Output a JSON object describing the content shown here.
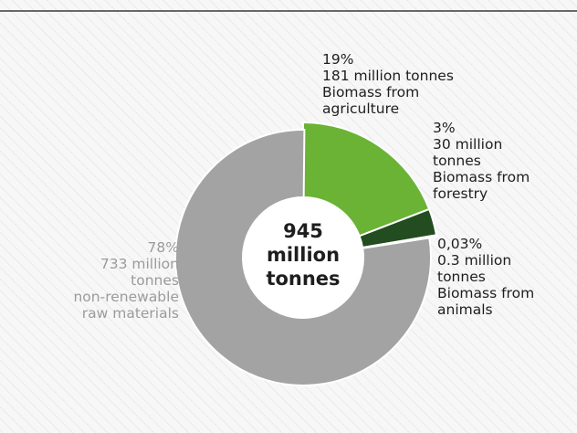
{
  "chart_data": {
    "type": "pie",
    "donut": true,
    "center_label": [
      "945",
      "million",
      "tonnes"
    ],
    "slices": [
      {
        "percent_label": "19%",
        "amount_label": "181 million tonnes",
        "category": "Biomass from agriculture",
        "value": 181,
        "color": "#6ab334"
      },
      {
        "percent_label": "3%",
        "amount_label": "30 million tonnes",
        "category": "Biomass from forestry",
        "value": 30,
        "color": "#234d20"
      },
      {
        "percent_label": "0,03%",
        "amount_label": "0.3 million tonnes",
        "category": "Biomass from animals",
        "value": 0.3,
        "color": "#d6003d"
      },
      {
        "percent_label": "78%",
        "amount_label": "733 million tonnes",
        "category": "non-renewable raw materials",
        "value": 733,
        "color": "#a3a3a3"
      }
    ]
  },
  "labels": {
    "agriculture": [
      "19%",
      "181 million tonnes",
      "Biomass from",
      "agriculture"
    ],
    "forestry": [
      "3%",
      "30 million",
      "tonnes",
      "Biomass from",
      "forestry"
    ],
    "animals": [
      "0,03%",
      "0.3 million",
      "tonnes",
      "Biomass from",
      "animals"
    ],
    "nonrenewable": [
      "78%",
      "733 million",
      "tonnes",
      "non-renewable",
      "raw materials"
    ]
  }
}
